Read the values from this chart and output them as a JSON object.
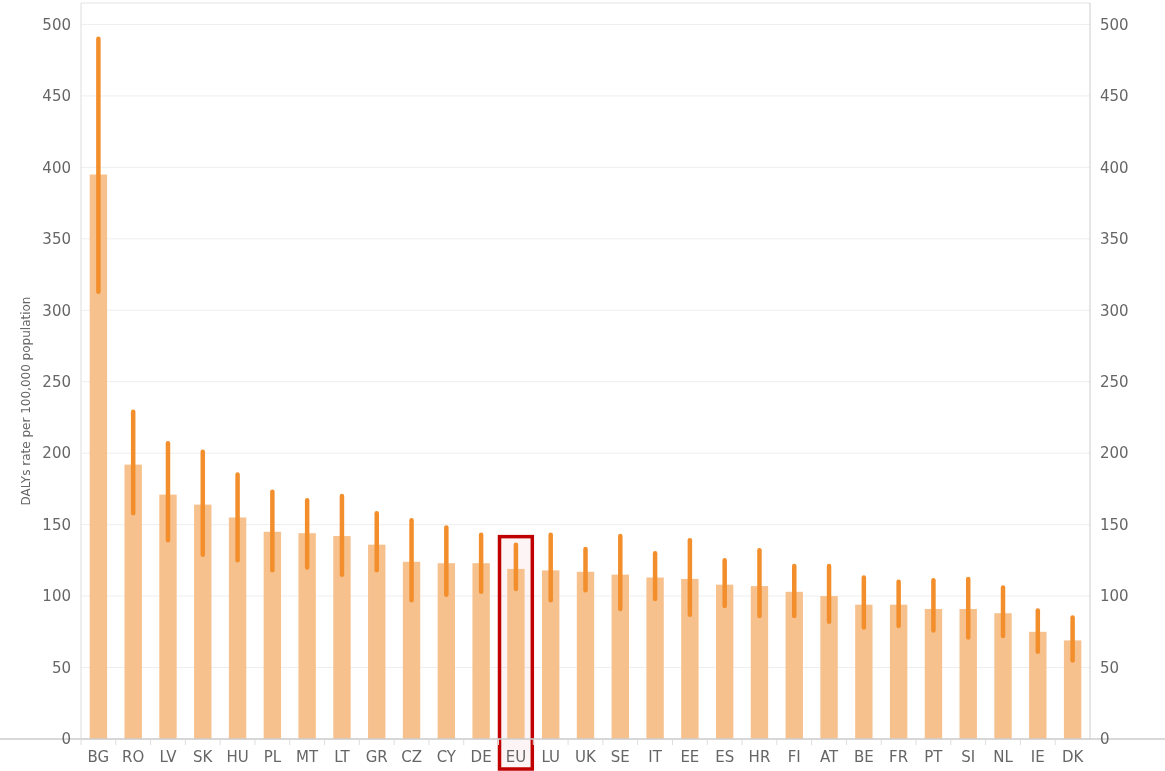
{
  "chart_data": {
    "type": "bar",
    "ylabel": "DALYs rate per 100,000 population",
    "categories": [
      "BG",
      "RO",
      "LV",
      "SK",
      "HU",
      "PL",
      "MT",
      "LT",
      "GR",
      "CZ",
      "CY",
      "DE",
      "EU",
      "LU",
      "UK",
      "SE",
      "IT",
      "EE",
      "ES",
      "HR",
      "FI",
      "AT",
      "BE",
      "FR",
      "PT",
      "SI",
      "NL",
      "IE",
      "DK"
    ],
    "values": [
      395,
      192,
      171,
      164,
      155,
      145,
      144,
      142,
      136,
      124,
      123,
      123,
      119,
      118,
      117,
      115,
      113,
      112,
      108,
      107,
      103,
      100,
      94,
      94,
      91,
      91,
      88,
      75,
      69
    ],
    "errors": [
      [
        313,
        490
      ],
      [
        158,
        229
      ],
      [
        139,
        207
      ],
      [
        129,
        201
      ],
      [
        125,
        185
      ],
      [
        118,
        173
      ],
      [
        120,
        167
      ],
      [
        115,
        170
      ],
      [
        118,
        158
      ],
      [
        97,
        153
      ],
      [
        101,
        148
      ],
      [
        103,
        143
      ],
      [
        105,
        136
      ],
      [
        97,
        143
      ],
      [
        104,
        133
      ],
      [
        91,
        142
      ],
      [
        98,
        130
      ],
      [
        87,
        139
      ],
      [
        93,
        125
      ],
      [
        86,
        132
      ],
      [
        86,
        121
      ],
      [
        82,
        121
      ],
      [
        78,
        113
      ],
      [
        79,
        110
      ],
      [
        76,
        111
      ],
      [
        71,
        112
      ],
      [
        72,
        106
      ],
      [
        61,
        90
      ],
      [
        55,
        85
      ]
    ],
    "color": "#f7c18e",
    "ylim": [
      0,
      515
    ],
    "yticks": [
      0,
      50,
      100,
      150,
      200,
      250,
      300,
      350,
      400,
      450,
      500
    ],
    "y2lim": [
      0,
      515
    ],
    "y2ticks": [
      0,
      50,
      100,
      150,
      200,
      250,
      300,
      350,
      400,
      450,
      500
    ],
    "grid": "y",
    "bands": [
      {
        "axis": "x",
        "from": "EU",
        "to": "EU",
        "color": "#c00000"
      }
    ]
  }
}
